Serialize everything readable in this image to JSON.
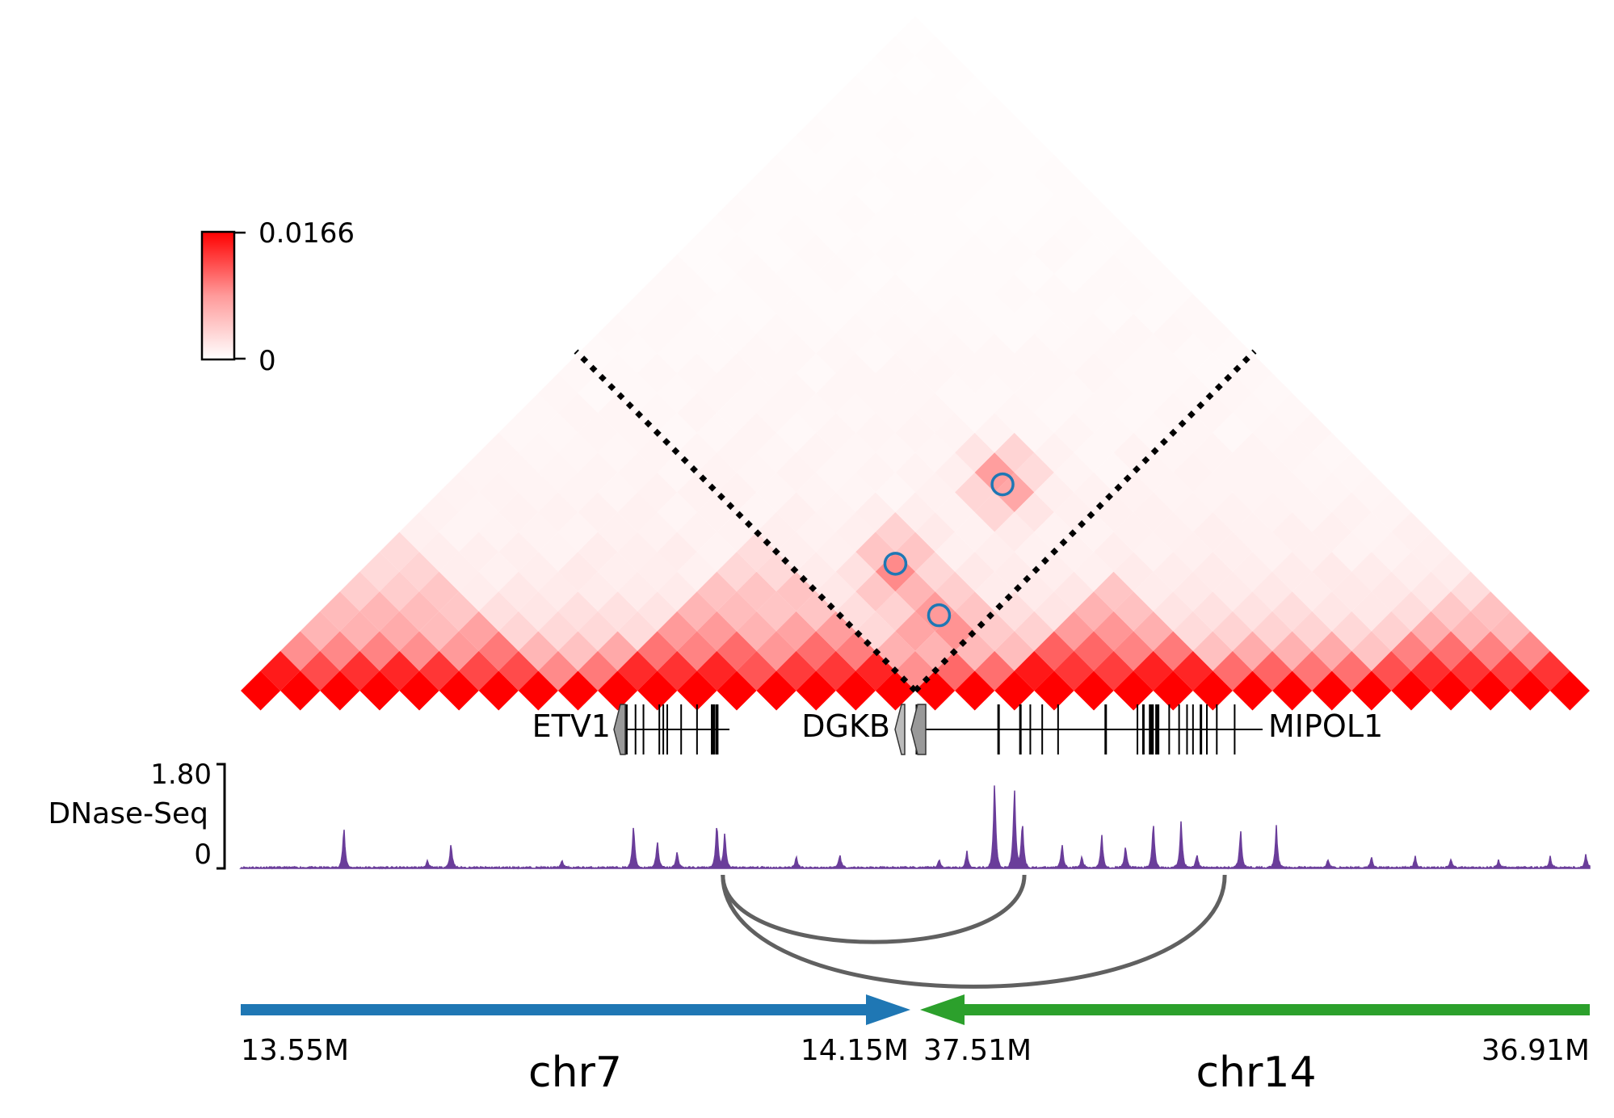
{
  "chart_data": {
    "type": "heatmap",
    "title": "",
    "subtype": "triangular Hi-C contact map (rotated 45°) with gene, DNase-Seq, loop and assembly tracks",
    "colorbar": {
      "min_label": "0",
      "max_label": "0.0166",
      "min": 0,
      "max": 0.0166,
      "colormap": "white-to-red"
    },
    "heatmap": {
      "bins": 34,
      "junction_bin": 17,
      "background_decay": "high contact at diagonal fading with distance",
      "domains": [
        {
          "start_bin": 0,
          "end_bin": 7,
          "strength": 0.55
        },
        {
          "start_bin": 9,
          "end_bin": 16,
          "strength": 0.6
        },
        {
          "start_bin": 19,
          "end_bin": 24,
          "strength": 0.85
        },
        {
          "start_bin": 28,
          "end_bin": 33,
          "strength": 0.6
        }
      ],
      "highlighted_contacts": [
        {
          "bin_i": 13.3,
          "bin_j": 19.7,
          "marker": "circle"
        },
        {
          "bin_i": 14.0,
          "bin_j": 24.4,
          "marker": "circle"
        },
        {
          "bin_i": 15.7,
          "bin_j": 19.5,
          "marker": "circle"
        }
      ],
      "dotted_boundary_lines": [
        "junction-left",
        "junction-right"
      ]
    },
    "genes": [
      {
        "name": "ETV1",
        "label_side": "left",
        "start_bin": 9.3,
        "end_bin": 12.1
      },
      {
        "name": "DGKB",
        "label_side": "left",
        "start_bin": 16.4,
        "end_bin": 17.0
      },
      {
        "name": "MIPOL1",
        "label_side": "right",
        "start_bin": 17.0,
        "end_bin": 25.2
      }
    ],
    "dnase_track": {
      "label": "DNase-Seq",
      "ymax_label": "1.80",
      "ymin_label": "0",
      "ylim": [
        0,
        1.8
      ],
      "color": "#6a3d9a",
      "peaks": [
        {
          "bin": 2.6,
          "value": 0.75
        },
        {
          "bin": 4.7,
          "value": 0.12
        },
        {
          "bin": 5.3,
          "value": 0.45
        },
        {
          "bin": 8.1,
          "value": 0.13
        },
        {
          "bin": 9.9,
          "value": 0.8
        },
        {
          "bin": 10.5,
          "value": 0.5
        },
        {
          "bin": 11.0,
          "value": 0.3
        },
        {
          "bin": 12.0,
          "value": 0.85
        },
        {
          "bin": 12.2,
          "value": 0.65
        },
        {
          "bin": 14.0,
          "value": 0.2
        },
        {
          "bin": 15.1,
          "value": 0.25
        },
        {
          "bin": 17.6,
          "value": 0.15
        },
        {
          "bin": 18.3,
          "value": 0.3
        },
        {
          "bin": 19.0,
          "value": 1.6
        },
        {
          "bin": 19.5,
          "value": 1.5
        },
        {
          "bin": 19.7,
          "value": 0.9
        },
        {
          "bin": 20.7,
          "value": 0.45
        },
        {
          "bin": 21.2,
          "value": 0.2
        },
        {
          "bin": 21.7,
          "value": 0.6
        },
        {
          "bin": 22.3,
          "value": 0.4
        },
        {
          "bin": 23.0,
          "value": 0.85
        },
        {
          "bin": 23.7,
          "value": 0.85
        },
        {
          "bin": 24.1,
          "value": 0.25
        },
        {
          "bin": 25.2,
          "value": 0.7
        },
        {
          "bin": 26.1,
          "value": 0.75
        },
        {
          "bin": 27.4,
          "value": 0.15
        },
        {
          "bin": 28.5,
          "value": 0.2
        },
        {
          "bin": 29.6,
          "value": 0.2
        },
        {
          "bin": 30.5,
          "value": 0.15
        },
        {
          "bin": 31.7,
          "value": 0.15
        },
        {
          "bin": 33.0,
          "value": 0.2
        },
        {
          "bin": 33.9,
          "value": 0.25
        }
      ]
    },
    "loops": [
      {
        "anchor1_bin": 12.15,
        "anchor2_bin": 19.75,
        "color": "#606060"
      },
      {
        "anchor1_bin": 12.15,
        "anchor2_bin": 24.8,
        "color": "#606060"
      }
    ],
    "assembly": [
      {
        "chromosome": "chr7",
        "start_label": "13.55M",
        "end_label": "14.15M",
        "direction": "forward",
        "color": "#1f77b4",
        "start_bin": 0,
        "end_bin": 17
      },
      {
        "chromosome": "chr14",
        "start_label": "37.51M",
        "end_label": "36.91M",
        "direction": "reverse",
        "color": "#2ca02c",
        "start_bin": 17,
        "end_bin": 34
      }
    ]
  }
}
